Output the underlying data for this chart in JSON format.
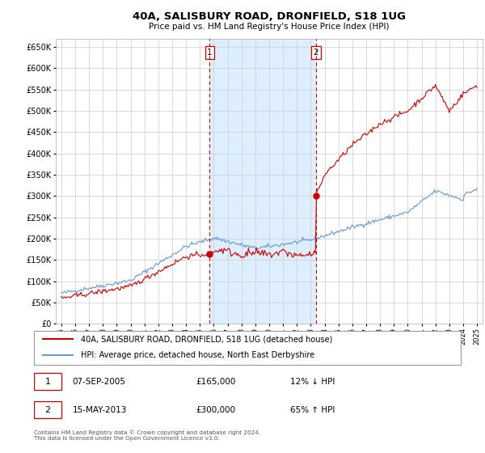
{
  "title": "40A, SALISBURY ROAD, DRONFIELD, S18 1UG",
  "subtitle": "Price paid vs. HM Land Registry's House Price Index (HPI)",
  "legend_line1": "40A, SALISBURY ROAD, DRONFIELD, S18 1UG (detached house)",
  "legend_line2": "HPI: Average price, detached house, North East Derbyshire",
  "sale1_date": "07-SEP-2005",
  "sale1_price": 165000,
  "sale1_pct": "12% ↓ HPI",
  "sale2_date": "15-MAY-2013",
  "sale2_price": 300000,
  "sale2_pct": "65% ↑ HPI",
  "footnote": "Contains HM Land Registry data © Crown copyright and database right 2024.\nThis data is licensed under the Open Government Licence v3.0.",
  "hpi_color": "#6699cc",
  "price_color": "#cc0000",
  "vline_color": "#cc0000",
  "shade_color": "#ddeeff",
  "background_color": "#ffffff",
  "grid_color": "#cccccc",
  "ylim": [
    0,
    670000
  ],
  "yticks": [
    0,
    50000,
    100000,
    150000,
    200000,
    250000,
    300000,
    350000,
    400000,
    450000,
    500000,
    550000,
    600000,
    650000
  ],
  "sale1_year": 2005.71,
  "sale2_year": 2013.37
}
